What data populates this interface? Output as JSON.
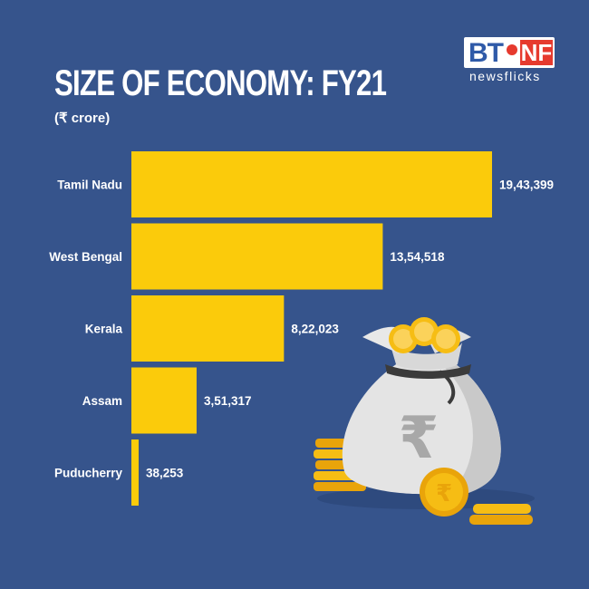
{
  "header": {
    "title": "SIZE OF ECONOMY: FY21",
    "subtitle": "(₹ crore)"
  },
  "logo": {
    "mark_left": "BT",
    "mark_right": "NF",
    "tagline": "newsflicks"
  },
  "illustration": {
    "icon": "money-bag-icon",
    "currency_symbol": "₹"
  },
  "colors": {
    "background": "#36548c",
    "bar": "#fbcb0b",
    "text": "#ffffff",
    "logo_red": "#e63a2e",
    "logo_blue": "#2f5aa8"
  },
  "chart_data": {
    "type": "bar",
    "orientation": "horizontal",
    "title": "SIZE OF ECONOMY: FY21",
    "subtitle": "(₹ crore)",
    "categories": [
      "Tamil Nadu",
      "West Bengal",
      "Kerala",
      "Assam",
      "Puducherry"
    ],
    "values": [
      1943399,
      1354518,
      822023,
      351317,
      38253
    ],
    "value_labels": [
      "19,43,399",
      "13,54,518",
      "8,22,023",
      "3,51,317",
      "38,253"
    ],
    "xlim": [
      0,
      1943399
    ],
    "grid": false,
    "legend": "none"
  }
}
